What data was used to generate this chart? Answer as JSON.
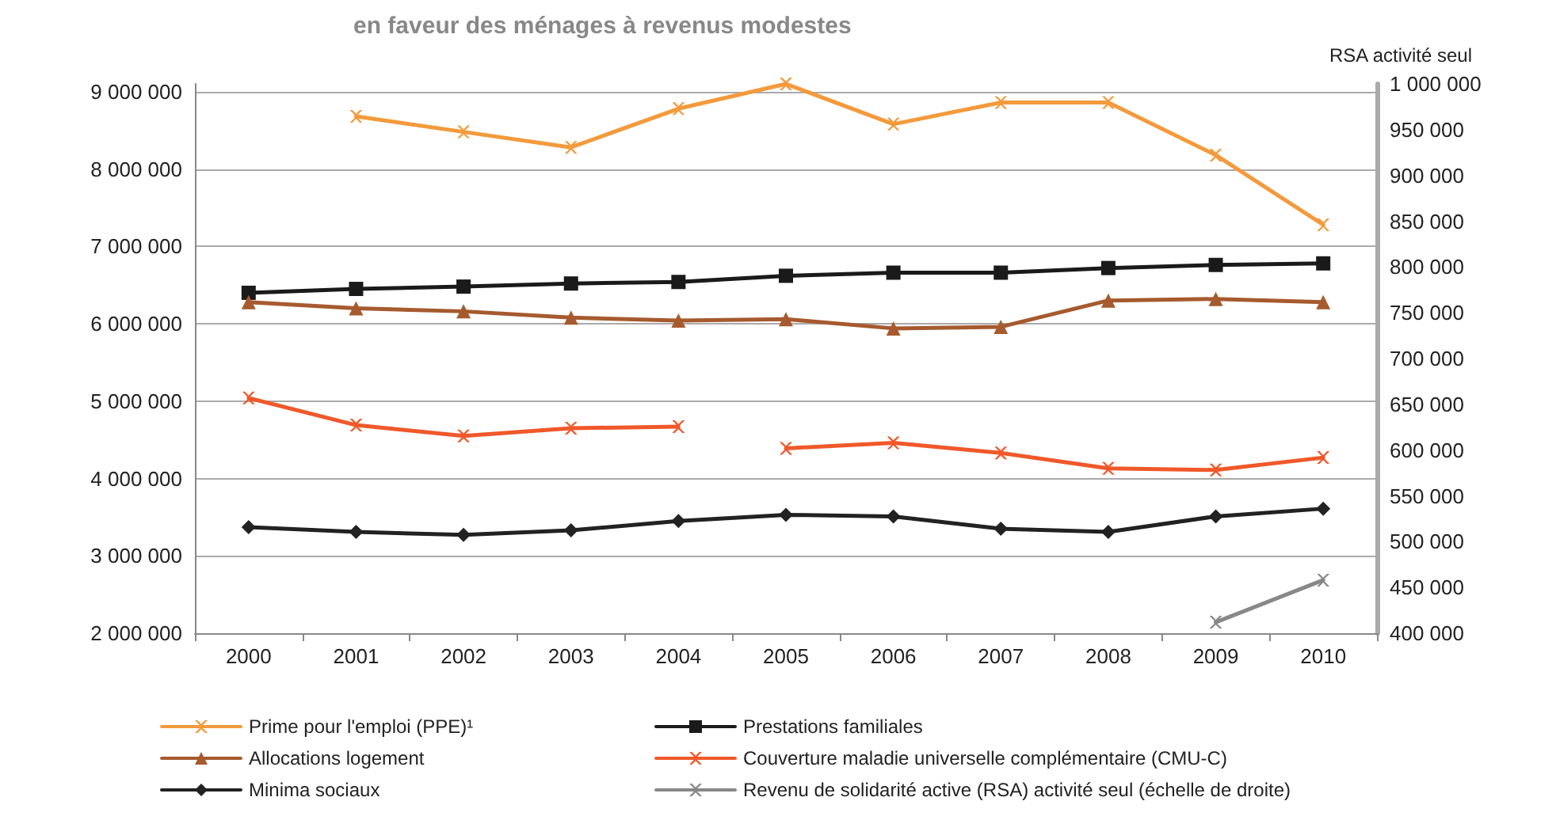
{
  "chart_data": {
    "type": "line",
    "title": "en faveur des ménages à revenus modestes",
    "y2label": "RSA activité seul",
    "categories": [
      "2000",
      "2001",
      "2002",
      "2003",
      "2004",
      "2005",
      "2006",
      "2007",
      "2008",
      "2009",
      "2010"
    ],
    "series": [
      {
        "name": "Prime pour l'emploi (PPE)¹",
        "color": "#f39a3c",
        "marker": "cross",
        "values": [
          null,
          8680000,
          8480000,
          8280000,
          8780000,
          9100000,
          8580000,
          8860000,
          8860000,
          8180000,
          7280000
        ]
      },
      {
        "name": "Prestations familiales",
        "color": "#1a1a1a",
        "marker": "square",
        "values": [
          6400000,
          6450000,
          6480000,
          6520000,
          6540000,
          6620000,
          6660000,
          6660000,
          6720000,
          6760000,
          6780000
        ]
      },
      {
        "name": "Allocations logement",
        "color": "#a65a2e",
        "marker": "triangle",
        "values": [
          6280000,
          6200000,
          6160000,
          6080000,
          6040000,
          6060000,
          5940000,
          5960000,
          6300000,
          6320000,
          6280000
        ]
      },
      {
        "name": "Couverture maladie universelle complémentaire (CMU-C)",
        "color": "#f0582a",
        "marker": "cross",
        "values": [
          5040000,
          4690000,
          4550000,
          4650000,
          4670000,
          null,
          null,
          null,
          null,
          null,
          null
        ]
      },
      {
        "color": "#f0582a",
        "marker": "cross",
        "values": [
          null,
          null,
          null,
          null,
          null,
          4390000,
          4460000,
          4330000,
          4130000,
          4110000,
          4270000
        ]
      },
      {
        "name": "Minima sociaux",
        "color": "#222222",
        "marker": "diamond",
        "values": [
          3370000,
          3310000,
          3270000,
          3330000,
          3450000,
          3530000,
          3510000,
          3350000,
          3310000,
          3510000,
          3610000
        ]
      },
      {
        "name": "Revenu de solidarité active (RSA) activité seul (échelle de droite)",
        "color": "#888888",
        "marker": "cross",
        "axis": "y2",
        "values": [
          null,
          null,
          null,
          null,
          null,
          null,
          null,
          null,
          null,
          412000,
          458000
        ]
      }
    ],
    "ylim": [
      2000000,
      9100000
    ],
    "yticks": [
      {
        "value": 2000000,
        "label": "2 000 000"
      },
      {
        "value": 3000000,
        "label": "3 000 000"
      },
      {
        "value": 4000000,
        "label": "4 000 000"
      },
      {
        "value": 5000000,
        "label": "5 000 000"
      },
      {
        "value": 6000000,
        "label": "6 000 000"
      },
      {
        "value": 7000000,
        "label": "7 000 000"
      },
      {
        "value": 8000000,
        "label": "8 000 000"
      },
      {
        "value": 9000000,
        "label": "9 000 000"
      }
    ],
    "y2lim": [
      400000,
      1000000
    ],
    "y2ticks": [
      {
        "value": 400000,
        "label": "400 000"
      },
      {
        "value": 450000,
        "label": "450 000"
      },
      {
        "value": 500000,
        "label": "500 000"
      },
      {
        "value": 550000,
        "label": "550 000"
      },
      {
        "value": 600000,
        "label": "600 000"
      },
      {
        "value": 650000,
        "label": "650 000"
      },
      {
        "value": 700000,
        "label": "700 000"
      },
      {
        "value": 750000,
        "label": "750 000"
      },
      {
        "value": 800000,
        "label": "800 000"
      },
      {
        "value": 850000,
        "label": "850 000"
      },
      {
        "value": 900000,
        "label": "900 000"
      },
      {
        "value": 950000,
        "label": "950 000"
      },
      {
        "value": 1000000,
        "label": "1 000 000"
      }
    ],
    "grid": "y",
    "legend": "bottom"
  }
}
